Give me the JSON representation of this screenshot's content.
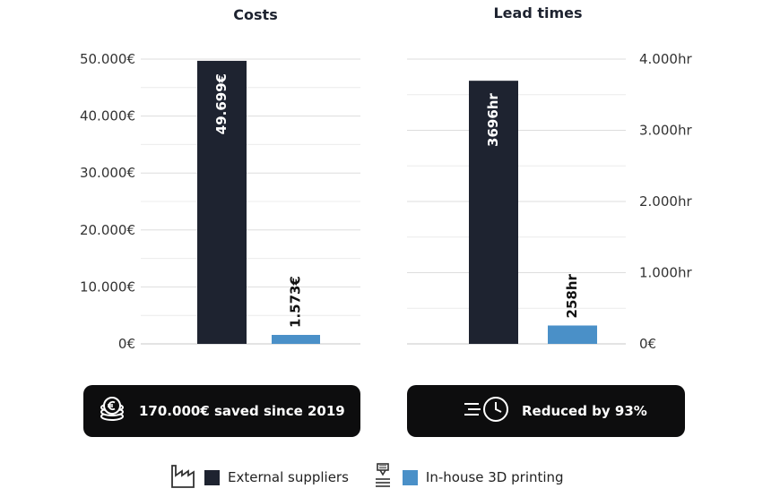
{
  "colors": {
    "external": "#1e2330",
    "inhouse": "#4a90c8",
    "grid": "#dddddd",
    "banner_bg": "#0d0d0e"
  },
  "chart_data": [
    {
      "type": "bar",
      "title": "Costs",
      "categories": [
        "External suppliers",
        "In-house 3D printing"
      ],
      "values": [
        49699,
        1573
      ],
      "data_labels": [
        "49.699€",
        "1.573€"
      ],
      "ylim": [
        0,
        50000
      ],
      "yticks": [
        0,
        10000,
        20000,
        30000,
        40000,
        50000
      ],
      "ytick_labels": [
        "0€",
        "10.000€",
        "20.000€",
        "30.000€",
        "40.000€",
        "50.000€"
      ],
      "grid": true,
      "y_axis_side": "left"
    },
    {
      "type": "bar",
      "title": "Lead times",
      "categories": [
        "External suppliers",
        "In-house 3D printing"
      ],
      "values": [
        3696,
        258
      ],
      "data_labels": [
        "3696hr",
        "258hr"
      ],
      "ylim": [
        0,
        4000
      ],
      "yticks": [
        0,
        1000,
        2000,
        3000,
        4000
      ],
      "ytick_labels": [
        "0€",
        "1.000hr",
        "2.000hr",
        "3.000hr",
        "4.000hr"
      ],
      "grid": true,
      "y_axis_side": "right"
    }
  ],
  "banners": {
    "costs": {
      "text": "170.000€ saved since 2019",
      "icon": "coins-euro-icon"
    },
    "lead": {
      "text": "Reduced by 93%",
      "icon": "fast-clock-icon"
    }
  },
  "legend": {
    "external": {
      "label": "External suppliers",
      "icon": "factory-icon"
    },
    "inhouse": {
      "label": "In-house 3D printing",
      "icon": "3d-printer-icon"
    }
  }
}
